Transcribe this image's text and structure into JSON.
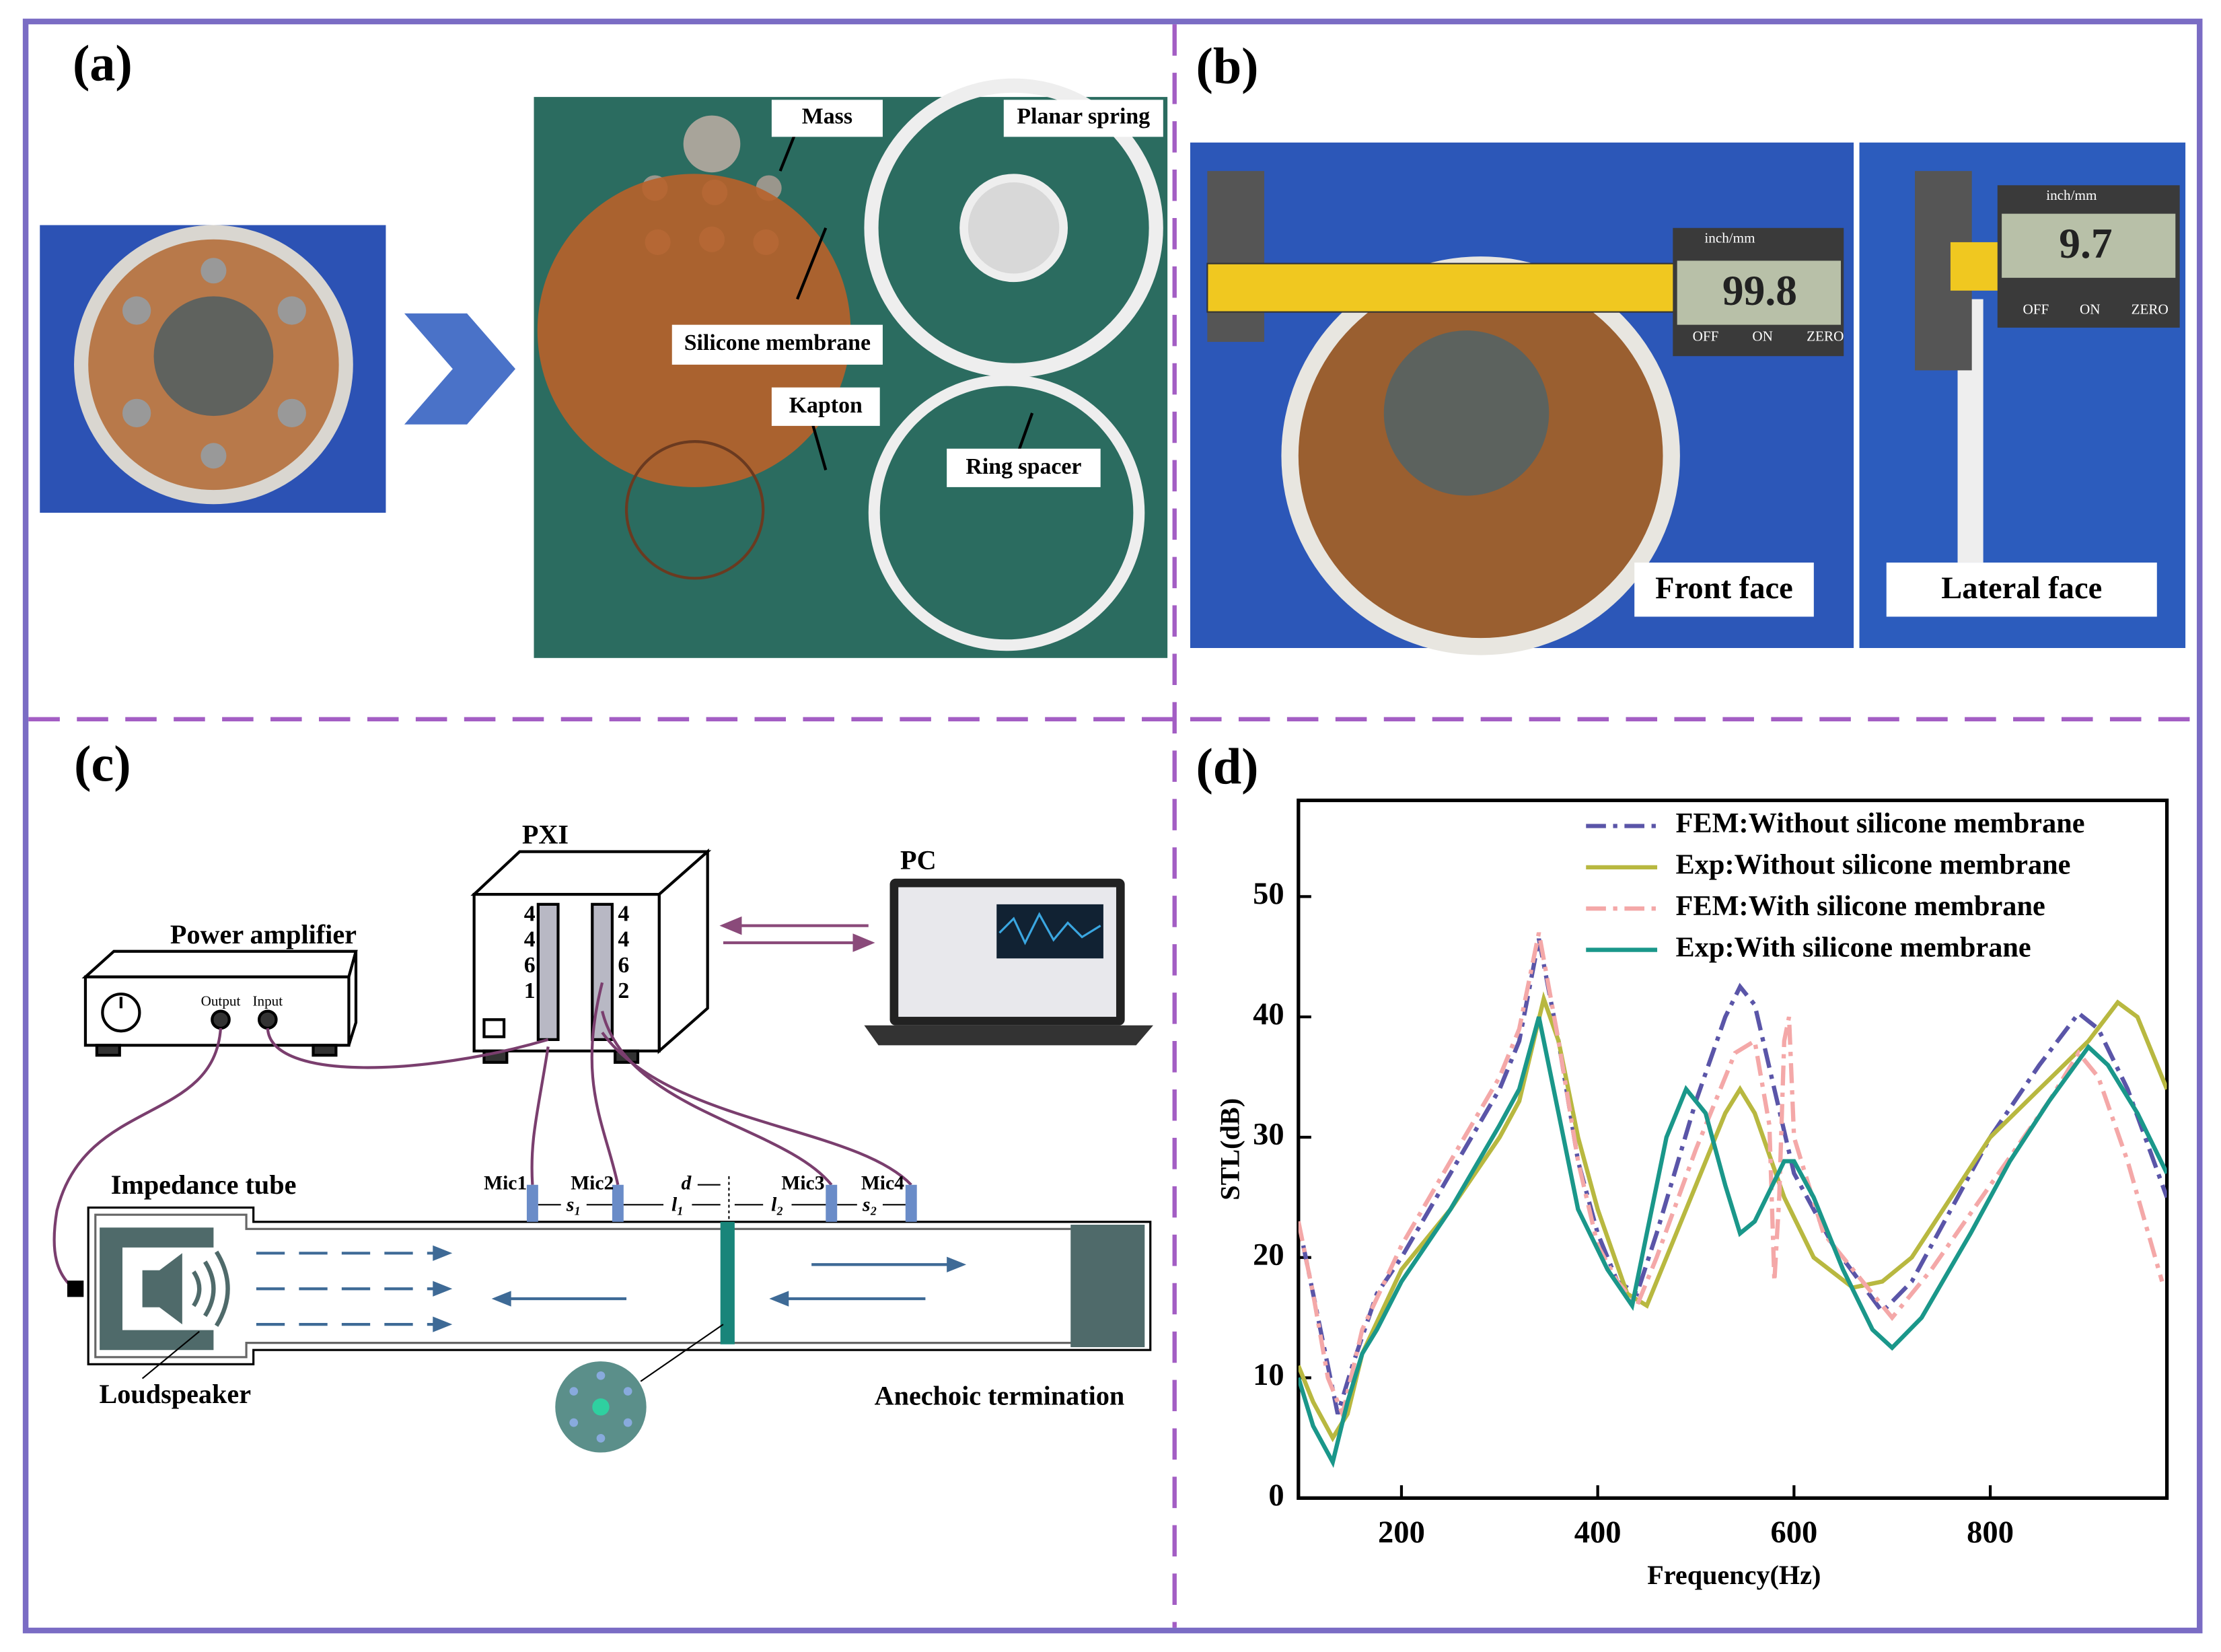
{
  "panel_labels": [
    "(a)",
    "(b)",
    "(c)",
    "(d)"
  ],
  "panel_a": {
    "labels": [
      "Mass",
      "Planar spring",
      "Silicone membrane",
      "Kapton",
      "Ring spacer"
    ]
  },
  "panel_b": {
    "readings": [
      "99.8",
      "9.7"
    ],
    "caliper_labels": [
      "inch/mm",
      "OFF",
      "ON",
      "ZERO"
    ],
    "labels": [
      "Front face",
      "Lateral face"
    ]
  },
  "panel_c": {
    "pxi": "PXI",
    "pc": "PC",
    "power_amplifier": "Power amplifier",
    "output": "Output",
    "input": "Input",
    "impedance_tube": "Impedance tube",
    "channels_left": [
      "4",
      "4",
      "6",
      "1"
    ],
    "channels_right": [
      "4",
      "4",
      "6",
      "2"
    ],
    "mics": [
      "Mic1",
      "Mic2",
      "Mic3",
      "Mic4"
    ],
    "spacings": [
      "s₁",
      "l₁",
      "d",
      "l₂",
      "s₂"
    ],
    "loudspeaker": "Loudspeaker",
    "anechoic_termination": "Anechoic termination"
  },
  "chart_data": {
    "type": "line",
    "x_label": "Frequency(Hz)",
    "y_label": "STL(dB)",
    "xlim": [
      95,
      980
    ],
    "ylim": [
      0,
      58
    ],
    "xticks": [
      200,
      400,
      600,
      800
    ],
    "yticks": [
      0,
      10,
      20,
      30,
      40,
      50
    ],
    "grid": false,
    "legend": "upper right",
    "series": [
      {
        "name": "FEM:Without silicone membrane",
        "color": "#5a55a8",
        "line_style": "dashdot",
        "x": [
          100,
          120,
          135,
          150,
          175,
          200,
          250,
          300,
          320,
          340,
          360,
          380,
          400,
          420,
          440,
          460,
          500,
          530,
          545,
          560,
          580,
          600,
          640,
          690,
          720,
          760,
          800,
          850,
          890,
          910,
          940,
          980
        ],
        "values": [
          21,
          13,
          7,
          11,
          17,
          20,
          27,
          34,
          38,
          46.5,
          38,
          28,
          22,
          18,
          17,
          22,
          33,
          40,
          42.5,
          41,
          34,
          27,
          21,
          15.5,
          18,
          24,
          30,
          36,
          40.3,
          39,
          34,
          25
        ]
      },
      {
        "name": "Exp:Without silicone membrane",
        "color": "#b8b840",
        "line_style": "solid",
        "x": [
          95,
          110,
          130,
          145,
          160,
          200,
          250,
          300,
          320,
          345,
          360,
          380,
          400,
          430,
          450,
          470,
          500,
          530,
          545,
          560,
          590,
          620,
          660,
          690,
          720,
          760,
          800,
          850,
          900,
          930,
          950,
          980
        ],
        "values": [
          11,
          8,
          5,
          7,
          12,
          19,
          24,
          30,
          33,
          41.5,
          38,
          30,
          24,
          17,
          16,
          20,
          26,
          32,
          34,
          32,
          25,
          20,
          17.5,
          18,
          20,
          25,
          30,
          34,
          38,
          41.2,
          40,
          34
        ]
      },
      {
        "name": "FEM:With silicone membrane",
        "color": "#f4a8a8",
        "line_style": "dashdot",
        "x": [
          95,
          110,
          125,
          140,
          160,
          200,
          250,
          300,
          320,
          340,
          360,
          380,
          400,
          420,
          440,
          460,
          500,
          540,
          560,
          575,
          580,
          585,
          590,
          595,
          600,
          630,
          680,
          700,
          740,
          800,
          860,
          890,
          910,
          940,
          975
        ],
        "values": [
          23,
          17,
          10,
          7,
          14,
          21,
          28,
          35,
          39,
          47,
          38,
          28,
          21,
          18,
          16,
          20,
          29,
          37,
          38,
          31,
          18,
          25,
          38,
          40,
          30,
          22,
          17,
          15,
          19,
          26,
          33,
          37,
          35,
          28,
          18
        ]
      },
      {
        "name": "Exp:With silicone membrane",
        "color": "#1a978a",
        "line_style": "solid",
        "x": [
          95,
          110,
          130,
          145,
          160,
          175,
          200,
          250,
          300,
          320,
          340,
          360,
          380,
          410,
          435,
          450,
          470,
          490,
          510,
          530,
          545,
          560,
          590,
          600,
          620,
          650,
          680,
          700,
          730,
          780,
          820,
          860,
          900,
          920,
          950,
          980
        ],
        "values": [
          10,
          6,
          3,
          8,
          12,
          14,
          18,
          24,
          31,
          34,
          40,
          32,
          24,
          19,
          16,
          22,
          30,
          34,
          32,
          26,
          22,
          23,
          28,
          28,
          25,
          19,
          14,
          12.5,
          15,
          22,
          28,
          33,
          37.5,
          36,
          32,
          27
        ]
      }
    ]
  }
}
